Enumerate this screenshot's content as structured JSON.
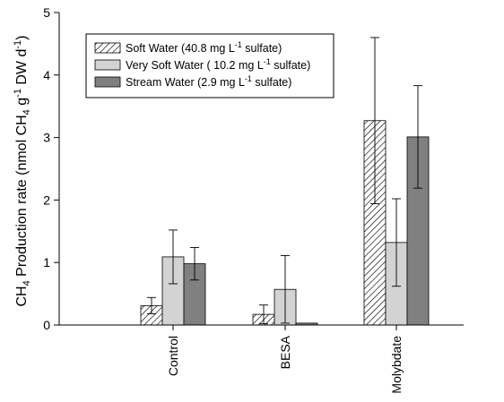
{
  "chart_data": {
    "type": "bar",
    "categories": [
      "Control",
      "BESA",
      "Molybdate"
    ],
    "ylim": [
      0,
      5
    ],
    "yticks": [
      0,
      1,
      2,
      3,
      4,
      5
    ],
    "ylabel": {
      "lead": "CH",
      "lead_sub": "4",
      "text1": " Production rate (nmol CH",
      "sub1": "4",
      "text2": " g",
      "sup1": "-1",
      "text3": " DW d",
      "sup2": "-1",
      "text4": ")"
    },
    "series": [
      {
        "name": "Soft Water (40.8 mg L-1 sulfate)",
        "legend": {
          "pre": "Soft Water (40.8 mg L",
          "sup": "-1",
          "post": " sulfate)"
        },
        "fill": "hatch",
        "values": [
          0.31,
          0.17,
          3.27
        ],
        "errors": [
          0.13,
          0.15,
          1.33
        ]
      },
      {
        "name": "Very Soft Water (10.2 mg L-1 sulfate)",
        "legend": {
          "pre": "Very Soft Water ( 10.2 mg L",
          "sup": "-1",
          "post": " sulfate)"
        },
        "fill": "#d3d3d3",
        "values": [
          1.09,
          0.57,
          1.32
        ],
        "errors": [
          0.43,
          0.54,
          0.7
        ]
      },
      {
        "name": "Stream Water (2.9 mg L-1 sulfate)",
        "legend": {
          "pre": "Stream Water (2.9 mg L",
          "sup": "-1",
          "post": " sulfate)"
        },
        "fill": "#808080",
        "values": [
          0.98,
          0.03,
          3.01
        ],
        "errors": [
          0.26,
          0.0,
          0.82
        ]
      }
    ],
    "legend_position": "top-left",
    "grid": false
  }
}
